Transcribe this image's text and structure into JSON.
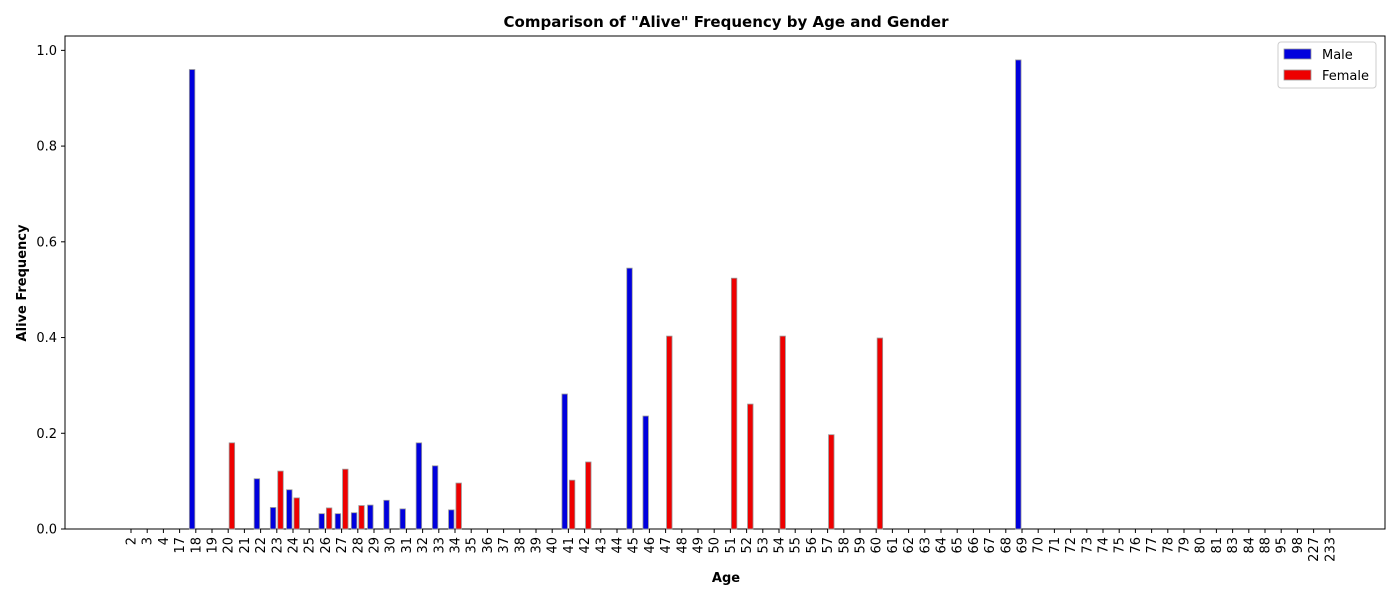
{
  "chart_data": {
    "type": "bar",
    "title": "Comparison of \"Alive\" Frequency by Age and Gender",
    "xlabel": "Age",
    "ylabel": "Alive Frequency",
    "ylim": [
      0,
      1.03
    ],
    "yticks": [
      "0.0",
      "0.2",
      "0.4",
      "0.6",
      "0.8",
      "1.0"
    ],
    "legend_position": "top-right",
    "categories": [
      "2",
      "3",
      "4",
      "17",
      "18",
      "19",
      "20",
      "21",
      "22",
      "23",
      "24",
      "25",
      "26",
      "27",
      "28",
      "29",
      "30",
      "31",
      "32",
      "33",
      "34",
      "35",
      "36",
      "37",
      "38",
      "39",
      "40",
      "41",
      "42",
      "43",
      "44",
      "45",
      "46",
      "47",
      "48",
      "49",
      "50",
      "51",
      "52",
      "53",
      "54",
      "55",
      "56",
      "57",
      "58",
      "59",
      "60",
      "61",
      "62",
      "63",
      "64",
      "65",
      "66",
      "67",
      "68",
      "69",
      "70",
      "71",
      "72",
      "73",
      "74",
      "75",
      "76",
      "77",
      "78",
      "79",
      "80",
      "81",
      "83",
      "84",
      "88",
      "95",
      "98",
      "227",
      "233"
    ],
    "series": [
      {
        "name": "Male",
        "color": "#0000dd",
        "values": [
          0,
          0,
          0,
          0,
          0.96,
          0,
          0,
          0,
          0.105,
          0.045,
          0.082,
          0,
          0.032,
          0.032,
          0.034,
          0.05,
          0.06,
          0.042,
          0.18,
          0.132,
          0.04,
          0,
          0,
          0,
          0,
          0,
          0,
          0.282,
          0,
          0,
          0,
          0.545,
          0.236,
          0,
          0,
          0,
          0,
          0,
          0,
          0,
          0,
          0,
          0,
          0,
          0,
          0,
          0,
          0,
          0,
          0,
          0,
          0,
          0,
          0,
          0,
          0.98,
          0,
          0,
          0,
          0,
          0,
          0,
          0,
          0,
          0,
          0,
          0,
          0,
          0,
          0,
          0,
          0,
          0,
          0,
          0
        ]
      },
      {
        "name": "Female",
        "color": "#ee0000",
        "values": [
          0,
          0,
          0,
          0,
          0,
          0,
          0.18,
          0,
          0,
          0.121,
          0.065,
          0,
          0.044,
          0.125,
          0.049,
          0,
          0,
          0,
          0,
          0,
          0.096,
          0,
          0,
          0,
          0,
          0,
          0,
          0.102,
          0.14,
          0,
          0,
          0,
          0,
          0.403,
          0,
          0,
          0,
          0.524,
          0.261,
          0,
          0.403,
          0,
          0,
          0.197,
          0,
          0,
          0.399,
          0,
          0,
          0,
          0,
          0,
          0,
          0,
          0,
          0,
          0,
          0,
          0,
          0,
          0,
          0,
          0,
          0,
          0,
          0,
          0,
          0,
          0,
          0,
          0,
          0,
          0,
          0,
          0
        ]
      }
    ]
  }
}
